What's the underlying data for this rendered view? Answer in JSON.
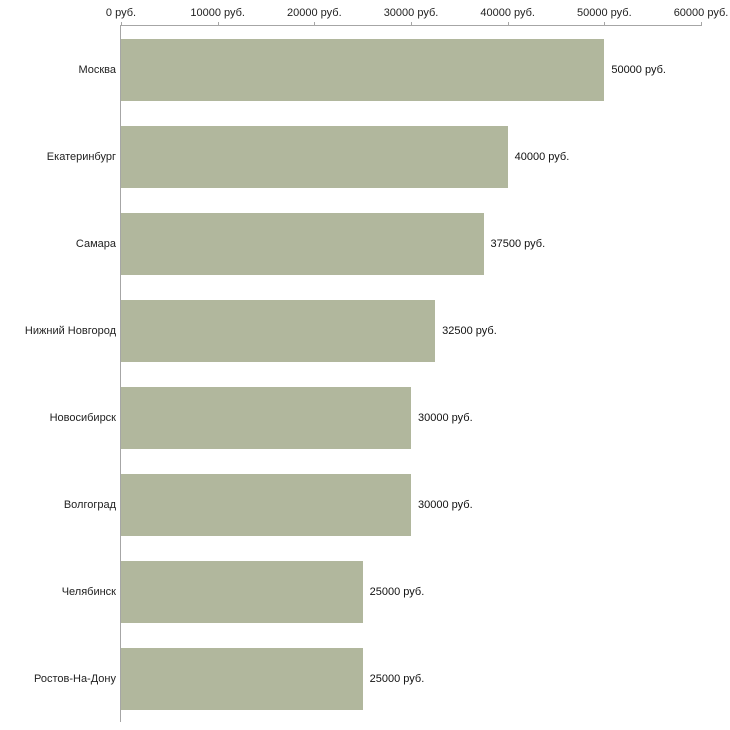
{
  "chart_data": {
    "type": "bar",
    "orientation": "horizontal",
    "title": "",
    "xlabel": "",
    "ylabel": "",
    "categories": [
      "Москва",
      "Екатеринбург",
      "Самара",
      "Нижний Новгород",
      "Новосибирск",
      "Волгоград",
      "Челябинск",
      "Ростов-На-Дону"
    ],
    "values": [
      50000,
      40000,
      37500,
      32500,
      30000,
      30000,
      25000,
      25000
    ],
    "value_labels": [
      "50000 руб.",
      "40000 руб.",
      "37500 руб.",
      "32500 руб.",
      "30000 руб.",
      "30000 руб.",
      "25000 руб.",
      "25000 руб."
    ],
    "x_axis": {
      "min": 0,
      "max": 60000,
      "tick_interval": 10000,
      "position": "top",
      "tick_labels": [
        "0 руб.",
        "10000 руб.",
        "20000 руб.",
        "30000 руб.",
        "40000 руб.",
        "50000 руб.",
        "60000 руб."
      ]
    },
    "grid": false,
    "legend": false,
    "bar_color": "#b1b79d",
    "axis_color": "#a6a6a6",
    "background_color": "#ffffff"
  }
}
